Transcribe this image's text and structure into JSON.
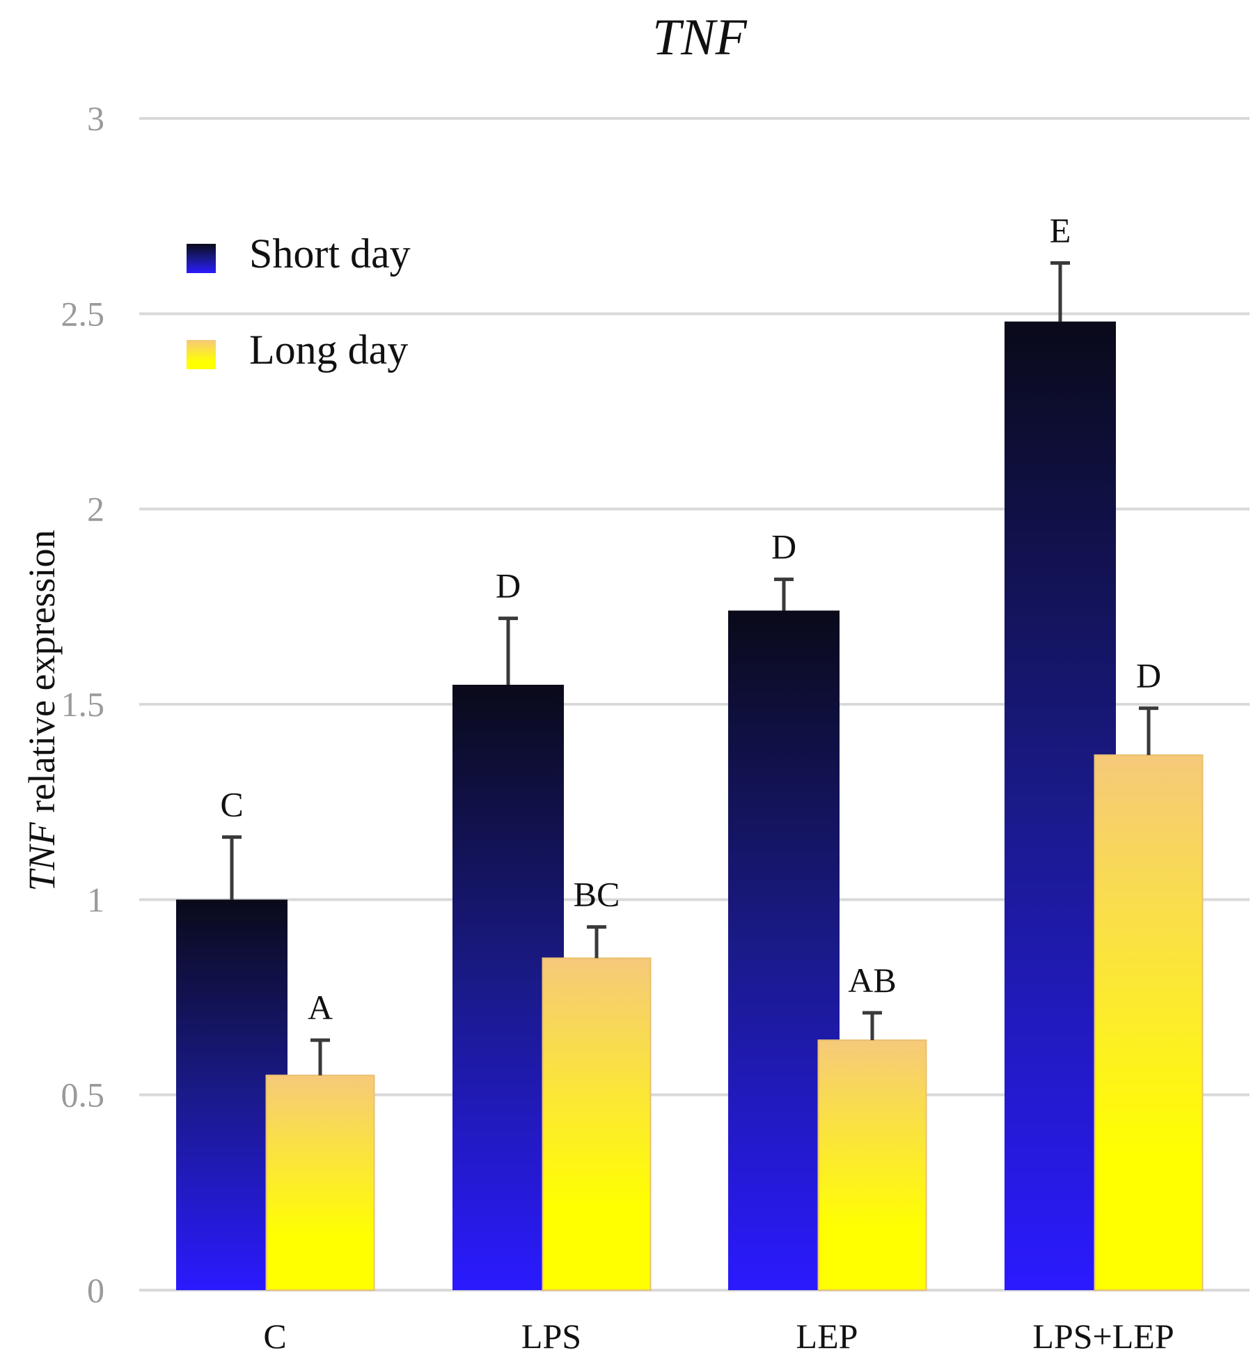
{
  "chart_data": {
    "type": "bar",
    "title": "TNF",
    "ylabel_italic": "TNF",
    "ylabel_rest": " relative expression",
    "xlabel": "",
    "ylim": [
      0,
      3
    ],
    "yticks": [
      0,
      0.5,
      1,
      1.5,
      2,
      2.5,
      3
    ],
    "ytick_labels": [
      "0",
      "0.5",
      "1",
      "1.5",
      "2",
      "2.5",
      "3"
    ],
    "grid": true,
    "legend_position": "top-left",
    "categories": [
      "C",
      "LPS",
      "LEP",
      "LPS+LEP"
    ],
    "series": [
      {
        "name": "Short day",
        "values": [
          1.0,
          1.55,
          1.74,
          2.48
        ],
        "errors": [
          0.16,
          0.17,
          0.08,
          0.15
        ],
        "letters": [
          "C",
          "D",
          "D",
          "E"
        ],
        "color_top": "#0a0a1a",
        "color_mid": "#1a1a8a",
        "color_bottom": "#2a1aff"
      },
      {
        "name": "Long day",
        "values": [
          0.55,
          0.85,
          0.64,
          1.37
        ],
        "errors": [
          0.09,
          0.08,
          0.07,
          0.12
        ],
        "letters": [
          "A",
          "BC",
          "AB",
          "D"
        ],
        "color_top": "#f6c97a",
        "color_bottom": "#ffff00"
      }
    ]
  }
}
